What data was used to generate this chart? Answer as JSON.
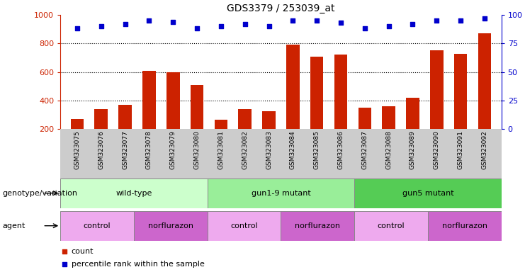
{
  "title": "GDS3379 / 253039_at",
  "samples": [
    "GSM323075",
    "GSM323076",
    "GSM323077",
    "GSM323078",
    "GSM323079",
    "GSM323080",
    "GSM323081",
    "GSM323082",
    "GSM323083",
    "GSM323084",
    "GSM323085",
    "GSM323086",
    "GSM323087",
    "GSM323088",
    "GSM323089",
    "GSM323090",
    "GSM323091",
    "GSM323092"
  ],
  "counts": [
    270,
    340,
    370,
    610,
    600,
    510,
    265,
    340,
    325,
    790,
    710,
    725,
    350,
    360,
    420,
    755,
    730,
    870
  ],
  "percentile_ranks": [
    88,
    90,
    92,
    95,
    94,
    88,
    90,
    92,
    90,
    95,
    95,
    93,
    88,
    90,
    92,
    95,
    95,
    97
  ],
  "bar_color": "#cc2200",
  "dot_color": "#0000cc",
  "ylim_left": [
    200,
    1000
  ],
  "ylim_right": [
    0,
    100
  ],
  "yticks_left": [
    200,
    400,
    600,
    800,
    1000
  ],
  "yticks_right": [
    0,
    25,
    50,
    75,
    100
  ],
  "grid_values": [
    400,
    600,
    800
  ],
  "genotype_groups": [
    {
      "label": "wild-type",
      "start": 0,
      "end": 6,
      "color": "#ccffcc"
    },
    {
      "label": "gun1-9 mutant",
      "start": 6,
      "end": 12,
      "color": "#99ee99"
    },
    {
      "label": "gun5 mutant",
      "start": 12,
      "end": 18,
      "color": "#55cc55"
    }
  ],
  "agent_groups": [
    {
      "label": "control",
      "start": 0,
      "end": 3,
      "color": "#eeaaee"
    },
    {
      "label": "norflurazon",
      "start": 3,
      "end": 6,
      "color": "#cc66cc"
    },
    {
      "label": "control",
      "start": 6,
      "end": 9,
      "color": "#eeaaee"
    },
    {
      "label": "norflurazon",
      "start": 9,
      "end": 12,
      "color": "#cc66cc"
    },
    {
      "label": "control",
      "start": 12,
      "end": 15,
      "color": "#eeaaee"
    },
    {
      "label": "norflurazon",
      "start": 15,
      "end": 18,
      "color": "#cc66cc"
    }
  ],
  "xlabel_row1": "genotype/variation",
  "xlabel_row2": "agent",
  "background_color": "#ffffff",
  "tick_label_color_left": "#cc2200",
  "tick_label_color_right": "#0000cc",
  "label_bg_color": "#cccccc",
  "legend_count_color": "#cc2200",
  "legend_dot_color": "#0000cc"
}
